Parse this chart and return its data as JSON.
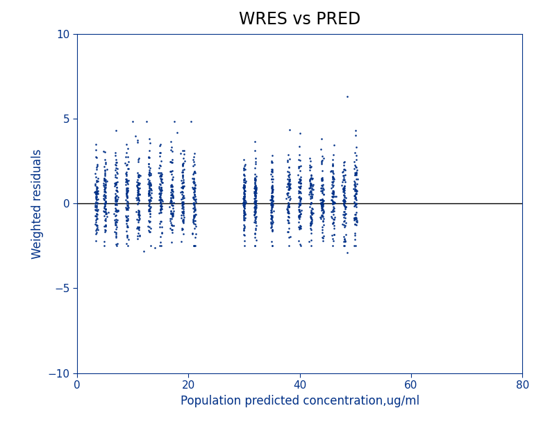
{
  "title": "WRES vs PRED",
  "xlabel": "Population predicted concentration,ug/ml",
  "ylabel": "Weighted residuals",
  "xlim": [
    0,
    80
  ],
  "ylim": [
    -10,
    10
  ],
  "xticks": [
    0,
    20,
    40,
    60,
    80
  ],
  "yticks": [
    -10,
    -5,
    0,
    5,
    10
  ],
  "dot_color": "#003087",
  "dot_size": 3.5,
  "hline_y": 0,
  "background_color": "#ffffff",
  "title_fontsize": 17,
  "label_fontsize": 12,
  "label_color": "#003087",
  "tick_color": "#003087",
  "spine_color": "#003087",
  "seed": 42,
  "strip_groups": [
    {
      "x_values": [
        3.5,
        5.0,
        7.0,
        9.0,
        11.0,
        13.0,
        15.0,
        17.0,
        19.0,
        21.0
      ],
      "x_noise": 0.15,
      "n_each": 80,
      "y_center": 0.3,
      "y_std": 1.3
    },
    {
      "x_values": [
        30.0,
        32.0,
        35.0
      ],
      "x_noise": 0.1,
      "n_each": 100,
      "y_center": 0.2,
      "y_std": 1.1
    },
    {
      "x_values": [
        38.0,
        40.0,
        42.0,
        44.0,
        46.0,
        48.0,
        50.0
      ],
      "x_noise": 0.15,
      "n_each": 80,
      "y_center": 0.3,
      "y_std": 1.3
    }
  ],
  "outlier_points": [
    [
      10.0,
      4.85
    ],
    [
      12.5,
      4.85
    ],
    [
      17.5,
      4.85
    ],
    [
      20.5,
      4.85
    ],
    [
      10.5,
      4.0
    ],
    [
      13.0,
      3.8
    ],
    [
      15.0,
      3.5
    ],
    [
      18.0,
      4.2
    ],
    [
      48.5,
      6.3
    ],
    [
      50.0,
      4.3
    ],
    [
      12.0,
      -2.8
    ],
    [
      14.0,
      -2.6
    ],
    [
      35.0,
      -2.5
    ],
    [
      40.0,
      -2.4
    ],
    [
      48.5,
      -2.9
    ]
  ]
}
